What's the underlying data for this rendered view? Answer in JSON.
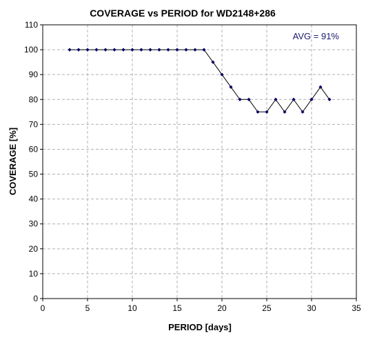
{
  "chart_data": {
    "type": "line",
    "title": "COVERAGE vs PERIOD for WD2148+286",
    "xlabel": "PERIOD [days]",
    "ylabel": "COVERAGE [%]",
    "xlim": [
      0,
      35
    ],
    "ylim": [
      0,
      110
    ],
    "xticks": [
      0,
      5,
      10,
      15,
      20,
      25,
      30,
      35
    ],
    "yticks": [
      0,
      10,
      20,
      30,
      40,
      50,
      60,
      70,
      80,
      90,
      100,
      110
    ],
    "grid": true,
    "annotation": "AVG = 91%",
    "series": [
      {
        "x": [
          3,
          4,
          5,
          6,
          7,
          8,
          9,
          10,
          11,
          12,
          13,
          14,
          15,
          16,
          17,
          18,
          19,
          20,
          21,
          22,
          23,
          24,
          25,
          26,
          27,
          28,
          29,
          30,
          31,
          32
        ],
        "values": [
          100,
          100,
          100,
          100,
          100,
          100,
          100,
          100,
          100,
          100,
          100,
          100,
          100,
          100,
          100,
          100,
          95,
          90,
          85,
          80,
          80,
          75,
          75,
          80,
          75,
          80,
          75,
          80,
          85,
          80
        ],
        "color": "#000066"
      }
    ]
  }
}
